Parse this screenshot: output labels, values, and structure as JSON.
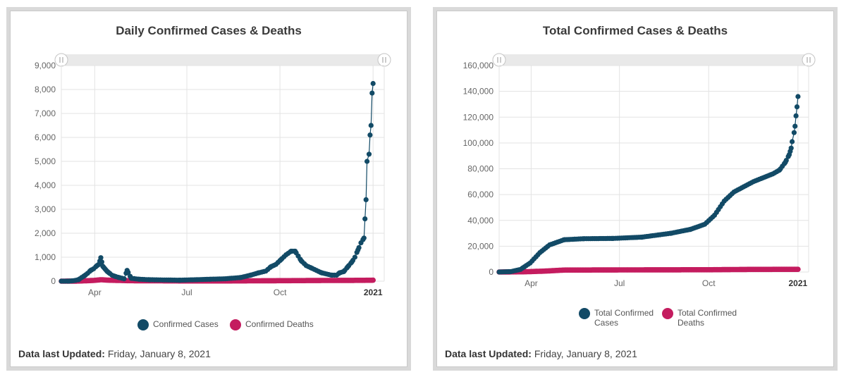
{
  "colors": {
    "cases": "#124a66",
    "deaths": "#c41c5f",
    "grid": "#e3e3e3",
    "axis_text": "#666666"
  },
  "footer": {
    "updated_label": "Data last Updated:",
    "updated_value": "Friday, January 8, 2021"
  },
  "chart_data": [
    {
      "type": "line",
      "title": "Daily Confirmed Cases & Deaths",
      "x_tick_labels": [
        "Apr",
        "Jul",
        "Oct",
        "2021"
      ],
      "x_tick_days": [
        16,
        107,
        199,
        291
      ],
      "x_range_days": [
        -17,
        302
      ],
      "ylim": [
        0,
        9000
      ],
      "y_ticks": [
        0,
        1000,
        2000,
        3000,
        4000,
        5000,
        6000,
        7000,
        8000,
        9000
      ],
      "y_tick_labels": [
        "0",
        "1,000",
        "2,000",
        "3,000",
        "4,000",
        "5,000",
        "6,000",
        "7,000",
        "8,000",
        "9,000"
      ],
      "legend": [
        "Confirmed Cases",
        "Confirmed Deaths"
      ],
      "series": [
        {
          "name": "Confirmed Cases",
          "points": [
            [
              -17,
              0
            ],
            [
              -10,
              0
            ],
            [
              -5,
              20
            ],
            [
              0,
              60
            ],
            [
              3,
              150
            ],
            [
              6,
              230
            ],
            [
              9,
              330
            ],
            [
              12,
              450
            ],
            [
              15,
              520
            ],
            [
              18,
              640
            ],
            [
              20,
              700
            ],
            [
              22,
              980
            ],
            [
              24,
              620
            ],
            [
              26,
              520
            ],
            [
              28,
              420
            ],
            [
              30,
              350
            ],
            [
              33,
              250
            ],
            [
              36,
              200
            ],
            [
              40,
              150
            ],
            [
              45,
              100
            ],
            [
              48,
              450
            ],
            [
              52,
              120
            ],
            [
              60,
              80
            ],
            [
              70,
              60
            ],
            [
              85,
              50
            ],
            [
              100,
              40
            ],
            [
              115,
              60
            ],
            [
              130,
              80
            ],
            [
              145,
              100
            ],
            [
              160,
              150
            ],
            [
              170,
              250
            ],
            [
              178,
              350
            ],
            [
              185,
              420
            ],
            [
              190,
              600
            ],
            [
              195,
              700
            ],
            [
              200,
              900
            ],
            [
              205,
              1100
            ],
            [
              210,
              1250
            ],
            [
              214,
              1250
            ],
            [
              217,
              1050
            ],
            [
              220,
              850
            ],
            [
              225,
              650
            ],
            [
              230,
              550
            ],
            [
              235,
              450
            ],
            [
              240,
              350
            ],
            [
              245,
              300
            ],
            [
              250,
              250
            ],
            [
              255,
              250
            ],
            [
              258,
              350
            ],
            [
              262,
              400
            ],
            [
              266,
              600
            ],
            [
              270,
              800
            ],
            [
              273,
              1000
            ],
            [
              276,
              1300
            ],
            [
              279,
              1600
            ],
            [
              282,
              1800
            ],
            [
              284,
              3400
            ],
            [
              285,
              5000
            ],
            [
              287,
              5300
            ],
            [
              288,
              6100
            ],
            [
              289,
              6500
            ],
            [
              290,
              7850
            ],
            [
              291,
              8250
            ]
          ]
        },
        {
          "name": "Confirmed Deaths",
          "points": [
            [
              -17,
              0
            ],
            [
              0,
              5
            ],
            [
              15,
              30
            ],
            [
              22,
              60
            ],
            [
              30,
              40
            ],
            [
              50,
              20
            ],
            [
              100,
              10
            ],
            [
              150,
              10
            ],
            [
              200,
              20
            ],
            [
              250,
              30
            ],
            [
              280,
              35
            ],
            [
              291,
              40
            ]
          ]
        }
      ]
    },
    {
      "type": "line",
      "title": "Total Confirmed Cases & Deaths",
      "x_tick_labels": [
        "Apr",
        "Jul",
        "Oct",
        "2021"
      ],
      "x_tick_days": [
        16,
        107,
        199,
        291
      ],
      "x_range_days": [
        -17,
        302
      ],
      "ylim": [
        0,
        160000
      ],
      "y_ticks": [
        0,
        20000,
        40000,
        60000,
        80000,
        100000,
        120000,
        140000,
        160000
      ],
      "y_tick_labels": [
        "0",
        "20,000",
        "40,000",
        "60,000",
        "80,000",
        "100,000",
        "120,000",
        "140,000",
        "160,000"
      ],
      "legend": [
        "Total Confirmed Cases",
        "Total Confirmed Deaths"
      ],
      "series": [
        {
          "name": "Total Confirmed Cases",
          "points": [
            [
              -17,
              0
            ],
            [
              -5,
              300
            ],
            [
              5,
              2000
            ],
            [
              15,
              7000
            ],
            [
              25,
              15000
            ],
            [
              35,
              21000
            ],
            [
              50,
              25000
            ],
            [
              70,
              25800
            ],
            [
              100,
              26000
            ],
            [
              130,
              27000
            ],
            [
              160,
              30000
            ],
            [
              180,
              33000
            ],
            [
              195,
              37000
            ],
            [
              205,
              44000
            ],
            [
              215,
              55000
            ],
            [
              225,
              62000
            ],
            [
              235,
              66000
            ],
            [
              245,
              70000
            ],
            [
              255,
              73000
            ],
            [
              265,
              76000
            ],
            [
              272,
              79000
            ],
            [
              278,
              85000
            ],
            [
              282,
              91000
            ],
            [
              284,
              96000
            ],
            [
              285,
              101000
            ],
            [
              287,
              108000
            ],
            [
              288,
              113000
            ],
            [
              289,
              121000
            ],
            [
              290,
              128000
            ],
            [
              291,
              136000
            ]
          ]
        },
        {
          "name": "Total Confirmed Deaths",
          "points": [
            [
              -17,
              0
            ],
            [
              10,
              200
            ],
            [
              30,
              700
            ],
            [
              50,
              1500
            ],
            [
              100,
              1600
            ],
            [
              150,
              1700
            ],
            [
              200,
              1750
            ],
            [
              240,
              2000
            ],
            [
              291,
              2100
            ]
          ]
        }
      ]
    }
  ]
}
